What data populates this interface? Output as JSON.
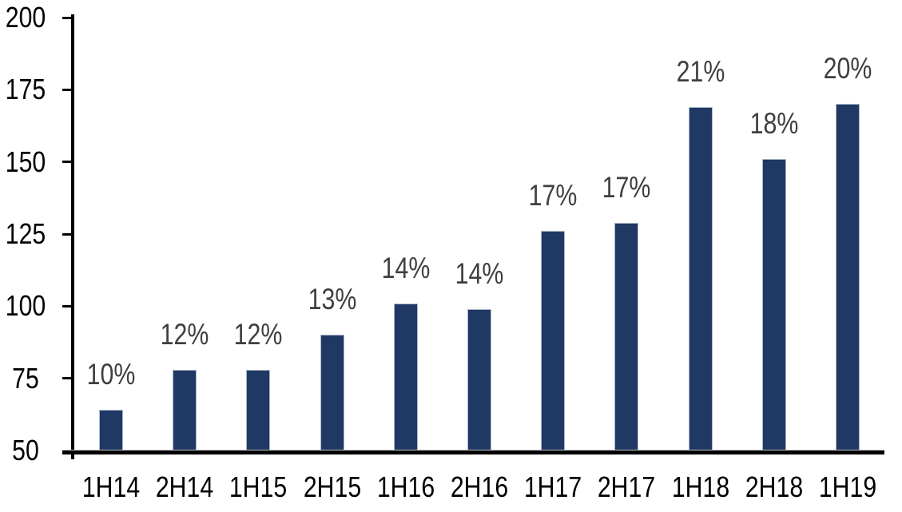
{
  "chart_data": {
    "type": "bar",
    "title": "",
    "xlabel": "",
    "ylabel": "",
    "categories": [
      "1H14",
      "2H14",
      "1H15",
      "2H15",
      "1H16",
      "2H16",
      "1H17",
      "2H17",
      "1H18",
      "2H18",
      "1H19"
    ],
    "values": [
      64,
      78,
      78,
      90,
      101,
      99,
      126,
      129,
      169,
      151,
      170
    ],
    "bar_labels": [
      "10%",
      "12%",
      "12%",
      "13%",
      "14%",
      "14%",
      "17%",
      "17%",
      "21%",
      "18%",
      "20%"
    ],
    "ylim": [
      50,
      200
    ],
    "yticks": [
      50,
      75,
      100,
      125,
      150,
      175,
      200
    ],
    "grid": false,
    "legend": false,
    "colors": {
      "bar_fill": "#1f3864",
      "bar_border": "#aeb9cc",
      "value_label": "#3f3f3f",
      "axis_text": "#000000",
      "axis_line": "#000000",
      "background": "#ffffff"
    }
  }
}
